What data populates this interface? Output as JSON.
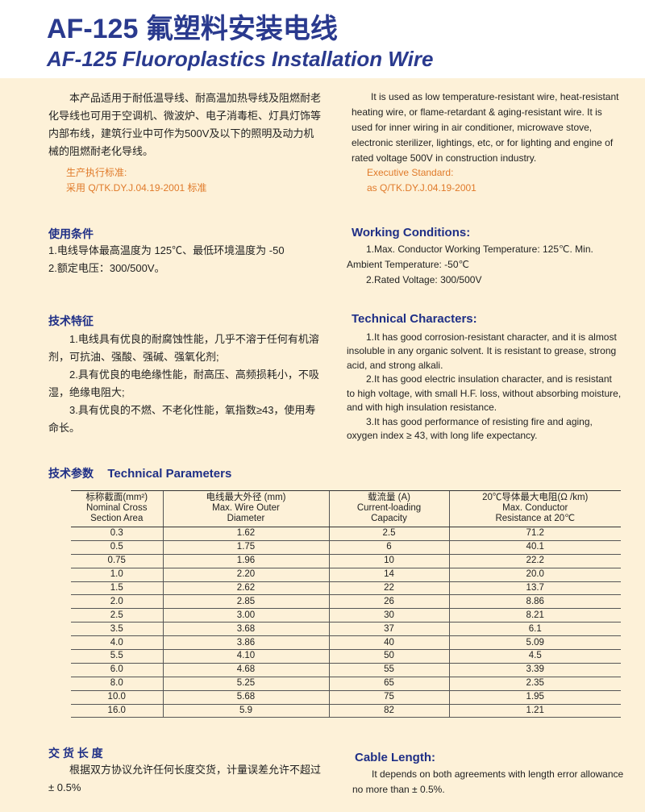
{
  "title_zh": "AF-125 氟塑料安装电线",
  "title_en": "AF-125 Fluoroplastics Installation Wire",
  "intro_zh": "本产品适用于耐低温导线、耐高温加热导线及阻燃耐老化导线也可用于空调机、微波炉、电子消毒柜、灯具灯饰等内部布线，建筑行业中可作为500V及以下的照明及动力机械的阻燃耐老化导线。",
  "intro_en": "It is used as low temperature-resistant wire, heat-resistant heating wire, or flame-retardant & aging-resistant wire. It is  used for inner wiring in air conditioner, microwave stove, electronic sterilizer, lightings, etc, or for lighting and engine of rated voltage 500V in construction industry.",
  "standard_zh": {
    "label": "生产执行标准:",
    "value": "采用 Q/TK.DY.J.04.19-2001 标准"
  },
  "standard_en": {
    "label": "Executive Standard:",
    "value": "as Q/TK.DY.J.04.19-2001"
  },
  "conditions_zh": {
    "heading": "使用条件",
    "items": [
      "1.电线导体最高温度为 125℃、最低环境温度为 -50",
      "2.额定电压：300/500V。"
    ]
  },
  "conditions_en": {
    "heading": "Working Conditions:",
    "items": [
      "1.Max. Conductor Working Temperature: 125℃. Min. Ambient Temperature: -50℃",
      "2.Rated Voltage: 300/500V"
    ]
  },
  "characters_zh": {
    "heading": "技术特征",
    "items": [
      "1.电线具有优良的耐腐蚀性能，几乎不溶于任何有机溶剂，可抗油、强酸、强碱、强氧化剂;",
      "2.具有优良的电绝缘性能，耐高压、高频损耗小，不吸湿，绝缘电阻大;",
      "3.具有优良的不燃、不老化性能，氧指数≥43，使用寿命长。"
    ]
  },
  "characters_en": {
    "heading": "Technical Characters:",
    "items": [
      "1.It has good corrosion-resistant character, and it is almost insoluble in any organic solvent. It is resistant to grease, strong acid, and strong alkali.",
      "2.It has good electric insulation character, and is resistant to high voltage, with small H.F. loss, without absorbing moisture, and with high insulation resistance.",
      "3.It has good performance of resisting fire and aging, oxygen index ≥ 43, with long life expectancy."
    ]
  },
  "params": {
    "heading_zh": "技术参数",
    "heading_en": "Technical Parameters",
    "headers": [
      [
        "标称截面(mm²)",
        "Nominal Cross",
        "Section Area"
      ],
      [
        "电线最大外径  (mm)",
        "Max. Wire Outer",
        "Diameter"
      ],
      [
        "载流量 (A)",
        "Current-loading",
        "Capacity"
      ],
      [
        "20℃导体最大电阻(Ω /km)",
        "Max. Conductor",
        "Resistance at 20℃"
      ]
    ],
    "rows": [
      [
        "0.3",
        "1.62",
        "2.5",
        "71.2"
      ],
      [
        "0.5",
        "1.75",
        "6",
        "40.1"
      ],
      [
        "0.75",
        "1.96",
        "10",
        "22.2"
      ],
      [
        "1.0",
        "2.20",
        "14",
        "20.0"
      ],
      [
        "1.5",
        "2.62",
        "22",
        "13.7"
      ],
      [
        "2.0",
        "2.85",
        "26",
        "8.86"
      ],
      [
        "2.5",
        "3.00",
        "30",
        "8.21"
      ],
      [
        "3.5",
        "3.68",
        "37",
        "6.1"
      ],
      [
        "4.0",
        "3.86",
        "40",
        "5.09"
      ],
      [
        "5.5",
        "4.10",
        "50",
        "4.5"
      ],
      [
        "6.0",
        "4.68",
        "55",
        "3.39"
      ],
      [
        "8.0",
        "5.25",
        "65",
        "2.35"
      ],
      [
        "10.0",
        "5.68",
        "75",
        "1.95"
      ],
      [
        "16.0",
        "5.9",
        "82",
        "1.21"
      ]
    ]
  },
  "length_zh": {
    "heading": "交 货 长 度",
    "text": "根据双方协议允许任何长度交货，计量误差允许不超过 ± 0.5%"
  },
  "length_en": {
    "heading": "Cable Length:",
    "text": "It depends on both agreements with length error allowance no more than  ± 0.5%."
  }
}
